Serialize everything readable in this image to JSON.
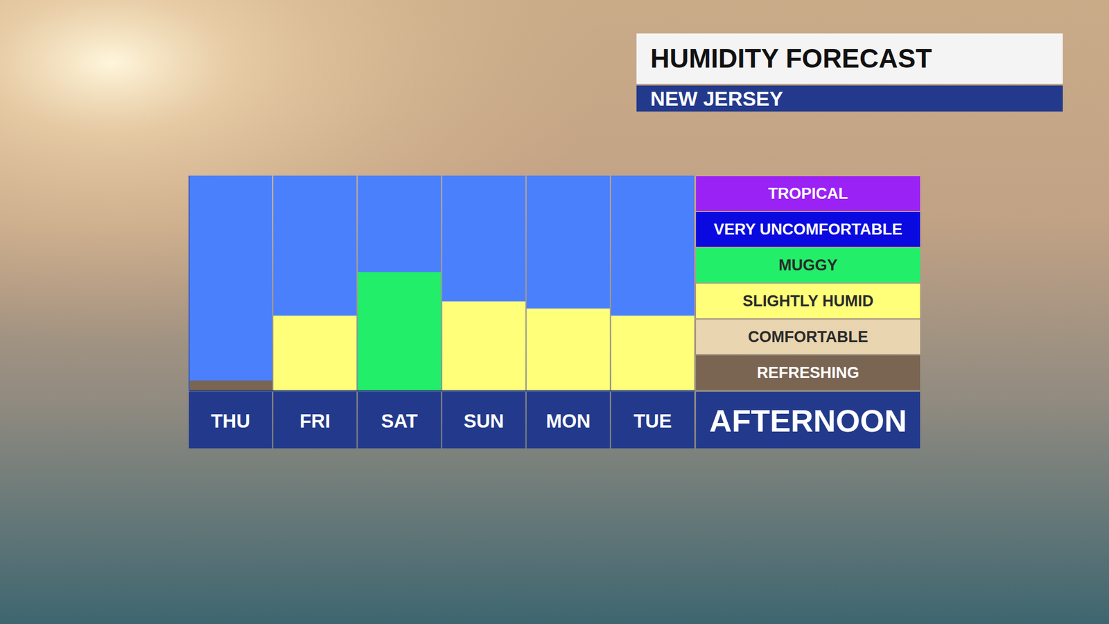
{
  "chart_data": {
    "type": "bar",
    "title": "HUMIDITY FORECAST",
    "subtitle": "NEW JERSEY",
    "annotation": "AFTERNOON",
    "categories": [
      "THU",
      "FRI",
      "SAT",
      "SUN",
      "MON",
      "TUE"
    ],
    "values": [
      0.28,
      2.09,
      3.31,
      2.49,
      2.29,
      2.09
    ],
    "colors": [
      "#7a6452",
      "#ffff7a",
      "#22ee6a",
      "#ffff7a",
      "#ffff7a",
      "#ffff7a"
    ],
    "ylim": [
      0,
      6
    ],
    "tick_labels": "x",
    "levels": [
      {
        "name": "REFRESHING",
        "color": "#7a6452",
        "lo": 0,
        "hi": 1
      },
      {
        "name": "COMFORTABLE",
        "color": "#e9d5b0",
        "lo": 1,
        "hi": 2
      },
      {
        "name": "SLIGHTLY HUMID",
        "color": "#ffff7a",
        "lo": 2,
        "hi": 3
      },
      {
        "name": "MUGGY",
        "color": "#22ee6a",
        "lo": 3,
        "hi": 4
      },
      {
        "name": "VERY UNCOMFORTABLE",
        "color": "#0a0ae0",
        "lo": 4,
        "hi": 5
      },
      {
        "name": "TROPICAL",
        "color": "#9b22f5",
        "lo": 5,
        "hi": 6
      }
    ]
  }
}
